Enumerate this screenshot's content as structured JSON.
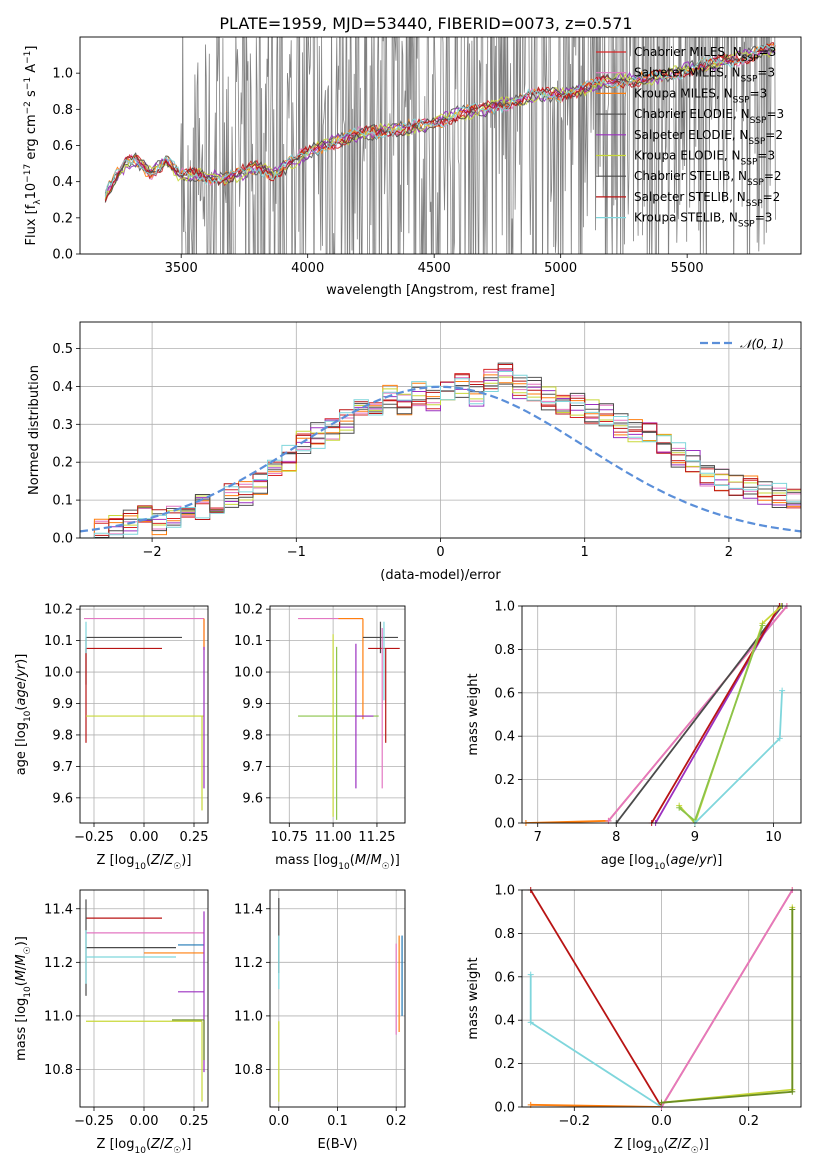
{
  "figure": {
    "title": "PLATE=1959, MJD=53440, FIBERID=0073, z=0.571"
  },
  "palette": {
    "chabrier_miles": "#1f77b4",
    "salpeter_miles": "#e377c2",
    "kroupa_miles": "#ff7f0e",
    "chabrier_elodie": "#555555",
    "salpeter_elodie": "#9467bd",
    "kroupa_elodie": "#bcbd22",
    "chabrier_stelib": "#4a4a4a",
    "salpeter_stelib": "#d62728",
    "kroupa_stelib": "#7fd6dc",
    "gauss": "#5b8fd9",
    "data_grey": "#808080"
  },
  "legend_spectrum": [
    {
      "text": "Chabrier MILES, N",
      "sub": "SSP",
      "tail": "=3",
      "color": "#d62728"
    },
    {
      "text": "Salpeter MILES, N",
      "sub": "SSP",
      "tail": "=3",
      "color": "#e377c2"
    },
    {
      "text": "Kroupa MILES, N",
      "sub": "SSP",
      "tail": "=3",
      "color": "#ff7f0e"
    },
    {
      "text": "Chabrier ELODIE, N",
      "sub": "SSP",
      "tail": "=3",
      "color": "#555555"
    },
    {
      "text": "Salpeter ELODIE, N",
      "sub": "SSP",
      "tail": "=2",
      "color": "#9b30c0"
    },
    {
      "text": "Kroupa ELODIE, N",
      "sub": "SSP",
      "tail": "=3",
      "color": "#c8d83a"
    },
    {
      "text": "Chabrier STELIB, N",
      "sub": "SSP",
      "tail": "=2",
      "color": "#4a4a4a"
    },
    {
      "text": "Salpeter STELIB, N",
      "sub": "SSP",
      "tail": "=2",
      "color": "#b81414"
    },
    {
      "text": "Kroupa STELIB, N",
      "sub": "SSP",
      "tail": "=3",
      "color": "#7fd6dc"
    }
  ],
  "legend_gauss": {
    "label": "𝒩(0, 1)"
  },
  "chart_data": [
    {
      "id": "spectrum",
      "type": "line",
      "xlabel": "wavelength [Angstrom, rest frame]",
      "ylabel": "Flux [f_λ 10^-17 erg cm^-2 s^-1 A^-1]",
      "xlim": [
        3100,
        5950
      ],
      "ylim": [
        0,
        1.2
      ],
      "xticks": [
        3500,
        4000,
        4500,
        5000,
        5500
      ],
      "yticks": [
        0.0,
        0.2,
        0.4,
        0.6,
        0.8,
        1.0
      ],
      "continuum": [
        [
          3200,
          0.33
        ],
        [
          3240,
          0.42
        ],
        [
          3280,
          0.5
        ],
        [
          3320,
          0.52
        ],
        [
          3380,
          0.45
        ],
        [
          3440,
          0.52
        ],
        [
          3500,
          0.43
        ],
        [
          3560,
          0.44
        ],
        [
          3620,
          0.42
        ],
        [
          3680,
          0.42
        ],
        [
          3740,
          0.45
        ],
        [
          3800,
          0.48
        ],
        [
          3870,
          0.44
        ],
        [
          3930,
          0.5
        ],
        [
          4000,
          0.56
        ],
        [
          4100,
          0.62
        ],
        [
          4200,
          0.66
        ],
        [
          4300,
          0.68
        ],
        [
          4400,
          0.7
        ],
        [
          4500,
          0.72
        ],
        [
          4600,
          0.78
        ],
        [
          4700,
          0.8
        ],
        [
          4800,
          0.84
        ],
        [
          4900,
          0.88
        ],
        [
          5000,
          0.88
        ],
        [
          5100,
          0.92
        ],
        [
          5200,
          0.96
        ],
        [
          5300,
          0.96
        ],
        [
          5400,
          0.98
        ],
        [
          5500,
          1.02
        ],
        [
          5600,
          1.05
        ],
        [
          5700,
          1.08
        ],
        [
          5800,
          1.12
        ],
        [
          5850,
          1.14
        ]
      ],
      "grey_region": [
        3200,
        5850
      ],
      "noisy_from": 3500
    },
    {
      "id": "residuals",
      "type": "histogram",
      "xlabel": "(data-model)/error",
      "ylabel": "Normed distribution",
      "xlim": [
        -2.5,
        2.5
      ],
      "ylim": [
        0,
        0.57
      ],
      "xticks": [
        -2,
        -1,
        0,
        1,
        2
      ],
      "yticks": [
        0.0,
        0.1,
        0.2,
        0.3,
        0.4,
        0.5
      ],
      "bin_edges_start": -2.5,
      "bin_width": 0.1,
      "base_heights": [
        0.02,
        0.02,
        0.03,
        0.04,
        0.05,
        0.04,
        0.05,
        0.06,
        0.08,
        0.09,
        0.11,
        0.12,
        0.15,
        0.18,
        0.21,
        0.25,
        0.27,
        0.29,
        0.31,
        0.33,
        0.34,
        0.37,
        0.36,
        0.38,
        0.37,
        0.39,
        0.4,
        0.38,
        0.41,
        0.44,
        0.4,
        0.39,
        0.37,
        0.36,
        0.35,
        0.33,
        0.32,
        0.3,
        0.28,
        0.27,
        0.25,
        0.22,
        0.2,
        0.17,
        0.15,
        0.14,
        0.13,
        0.12,
        0.11,
        0.1
      ],
      "gauss": {
        "mu": 0,
        "sigma": 1
      }
    },
    {
      "id": "age_vs_Z",
      "type": "errorbar",
      "xlabel": "Z [log10(Z/Z☉)]",
      "ylabel": "age [log10(age/yr)]",
      "xlim": [
        -0.32,
        0.32
      ],
      "ylim": [
        9.52,
        10.21
      ],
      "xticks": [
        -0.25,
        0.0,
        0.25
      ],
      "yticks": [
        9.6,
        9.7,
        9.8,
        9.9,
        10.0,
        10.1,
        10.2
      ],
      "points": [
        {
          "x": 0.3,
          "y": 10.17,
          "xerr": [
            0.6,
            0.0
          ],
          "yerr": [
            0.1,
            0.0
          ],
          "color": "#e377c2"
        },
        {
          "x": 0.3,
          "y": 10.17,
          "xerr": [
            0.0,
            0.0
          ],
          "yerr": [
            0.1,
            0.0
          ],
          "color": "#ff7f0e"
        },
        {
          "x": -0.29,
          "y": 10.11,
          "xerr": [
            0.0,
            0.48
          ],
          "yerr": [
            0.15,
            0.0
          ],
          "color": "#4a4a4a"
        },
        {
          "x": -0.29,
          "y": 10.075,
          "xerr": [
            0.0,
            0.38
          ],
          "yerr": [
            0.3,
            0.0
          ],
          "color": "#b81414"
        },
        {
          "x": -0.29,
          "y": 9.86,
          "xerr": [
            0.0,
            0.59
          ],
          "yerr": [
            0.0,
            0.0
          ],
          "color": "#c8d83a"
        },
        {
          "x": 0.29,
          "y": 9.86,
          "xerr": [
            0.0,
            0.0
          ],
          "yerr": [
            0.3,
            0.0
          ],
          "color": "#c8d83a"
        },
        {
          "x": -0.29,
          "y": 10.11,
          "xerr": [
            0.0,
            0.0
          ],
          "yerr": [
            0.05,
            0.05
          ],
          "color": "#7fd6dc"
        },
        {
          "x": 0.3,
          "y": 10.08,
          "xerr": [
            0.0,
            0.0
          ],
          "yerr": [
            0.45,
            0.0
          ],
          "color": "#9b30c0"
        }
      ]
    },
    {
      "id": "age_vs_mass",
      "type": "errorbar",
      "xlabel": "mass [log10(M/M☉)]",
      "ylabel": "",
      "xlim": [
        10.64,
        11.41
      ],
      "ylim": [
        9.52,
        10.21
      ],
      "xticks": [
        10.75,
        11.0,
        11.25
      ],
      "xticklabels": [
        "10.75",
        "11.00",
        "11.25"
      ],
      "yticks": [
        9.6,
        9.7,
        9.8,
        9.9,
        10.0,
        10.1,
        10.2
      ],
      "points": [
        {
          "x": 11.05,
          "y": 10.17,
          "xerr": [
            0.25,
            0.12
          ],
          "yerr": [
            0.0,
            0.0
          ],
          "color": "#e377c2"
        },
        {
          "x": 11.17,
          "y": 10.17,
          "xerr": [
            0.14,
            0.0
          ],
          "yerr": [
            0.32,
            0.0
          ],
          "color": "#ff7f0e"
        },
        {
          "x": 11.27,
          "y": 10.11,
          "xerr": [
            0.1,
            0.1
          ],
          "yerr": [
            0.05,
            0.05
          ],
          "color": "#4a4a4a"
        },
        {
          "x": 11.3,
          "y": 10.075,
          "xerr": [
            0.1,
            0.08
          ],
          "yerr": [
            0.3,
            0.0
          ],
          "color": "#b81414"
        },
        {
          "x": 11.02,
          "y": 9.86,
          "xerr": [
            0.22,
            0.24
          ],
          "yerr": [
            0.33,
            0.22
          ],
          "color": "#8bc34a"
        },
        {
          "x": 11.0,
          "y": 9.86,
          "xerr": [
            0.0,
            0.0
          ],
          "yerr": [
            0.32,
            0.26
          ],
          "color": "#c8d83a"
        },
        {
          "x": 11.13,
          "y": 9.86,
          "xerr": [
            0.0,
            0.1
          ],
          "yerr": [
            0.23,
            0.23
          ],
          "color": "#9b30c0"
        },
        {
          "x": 11.28,
          "y": 9.86,
          "xerr": [
            0.0,
            0.0
          ],
          "yerr": [
            0.23,
            0.28
          ],
          "color": "#e377c2"
        },
        {
          "x": 11.29,
          "y": 10.11,
          "xerr": [
            0.0,
            0.0
          ],
          "yerr": [
            0.2,
            0.05
          ],
          "color": "#7fd6dc"
        }
      ]
    },
    {
      "id": "massweight_vs_age",
      "type": "line",
      "xlabel": "age [log10(age/yr)]",
      "ylabel": "mass weight",
      "xlim": [
        6.8,
        10.35
      ],
      "ylim": [
        0,
        1.0
      ],
      "xticks": [
        7,
        8,
        9,
        10
      ],
      "yticks": [
        0.0,
        0.2,
        0.4,
        0.6,
        0.8,
        1.0
      ],
      "series": [
        {
          "color": "#ff7f0e",
          "points": [
            [
              6.85,
              0.0
            ],
            [
              7.9,
              0.01
            ],
            [
              10.17,
              1.0
            ]
          ]
        },
        {
          "color": "#e377c2",
          "points": [
            [
              7.9,
              0.01
            ],
            [
              10.17,
              1.0
            ]
          ]
        },
        {
          "color": "#4a4a4a",
          "points": [
            [
              8.0,
              0.0
            ],
            [
              10.11,
              1.0
            ]
          ]
        },
        {
          "color": "#9b30c0",
          "points": [
            [
              8.5,
              0.0
            ],
            [
              10.08,
              1.0
            ]
          ]
        },
        {
          "color": "#b81414",
          "points": [
            [
              8.45,
              0.0
            ],
            [
              10.075,
              1.0
            ]
          ]
        },
        {
          "color": "#c8d83a",
          "points": [
            [
              8.8,
              0.08
            ],
            [
              9.0,
              0.0
            ],
            [
              9.86,
              0.92
            ],
            [
              10.1,
              1.0
            ]
          ]
        },
        {
          "color": "#8bc34a",
          "points": [
            [
              8.8,
              0.07
            ],
            [
              9.0,
              0.01
            ],
            [
              9.86,
              0.91
            ]
          ]
        },
        {
          "color": "#7fd6dc",
          "points": [
            [
              9.0,
              0.0
            ],
            [
              10.08,
              0.39
            ],
            [
              10.11,
              0.61
            ]
          ]
        }
      ]
    },
    {
      "id": "mass_vs_Z",
      "type": "errorbar",
      "xlabel": "Z [log10(Z/Z☉)]",
      "ylabel": "mass [log10(M/M☉)]",
      "xlim": [
        -0.32,
        0.32
      ],
      "ylim": [
        10.66,
        11.47
      ],
      "xticks": [
        -0.25,
        0.0,
        0.25
      ],
      "yticks": [
        10.8,
        11.0,
        11.2,
        11.4
      ],
      "points": [
        {
          "x": -0.29,
          "y": 11.365,
          "xerr": [
            0.0,
            0.38
          ],
          "yerr": [
            0.0,
            0.0
          ],
          "color": "#b81414"
        },
        {
          "x": -0.29,
          "y": 11.31,
          "xerr": [
            0.0,
            0.59
          ],
          "yerr": [
            0.0,
            0.0
          ],
          "color": "#e377c2"
        },
        {
          "x": -0.29,
          "y": 11.255,
          "xerr": [
            0.0,
            0.45
          ],
          "yerr": [
            0.18,
            0.18
          ],
          "color": "#4a4a4a"
        },
        {
          "x": 0.3,
          "y": 11.265,
          "xerr": [
            0.13,
            0.0
          ],
          "yerr": [
            0.0,
            0.0
          ],
          "color": "#1f77b4"
        },
        {
          "x": 0.3,
          "y": 11.235,
          "xerr": [
            0.3,
            0.0
          ],
          "yerr": [
            0.0,
            0.0
          ],
          "color": "#ff7f0e"
        },
        {
          "x": -0.29,
          "y": 11.22,
          "xerr": [
            0.0,
            0.45
          ],
          "yerr": [
            0.1,
            0.1
          ],
          "color": "#7fd6dc"
        },
        {
          "x": 0.3,
          "y": 11.09,
          "xerr": [
            0.13,
            0.0
          ],
          "yerr": [
            0.3,
            0.3
          ],
          "color": "#9b30c0"
        },
        {
          "x": 0.29,
          "y": 10.98,
          "xerr": [
            0.58,
            0.0
          ],
          "yerr": [
            0.3,
            0.0
          ],
          "color": "#c8d83a"
        },
        {
          "x": 0.3,
          "y": 10.985,
          "xerr": [
            0.16,
            0.0
          ],
          "yerr": [
            0.15,
            0.0
          ],
          "color": "#6b8e23"
        }
      ]
    },
    {
      "id": "mass_vs_ebv",
      "type": "errorbar",
      "xlabel": "E(B-V)",
      "ylabel": "",
      "xlim": [
        -0.015,
        0.215
      ],
      "ylim": [
        10.66,
        11.47
      ],
      "xticks": [
        0.0,
        0.1,
        0.2
      ],
      "yticks": [
        10.8,
        11.0,
        11.2,
        11.4
      ],
      "points": [
        {
          "x": 0.0,
          "y": 11.3,
          "xerr": [
            0.0,
            0.0
          ],
          "yerr": [
            0.14,
            0.14
          ],
          "color": "#4a4a4a"
        },
        {
          "x": 0.0,
          "y": 11.2,
          "xerr": [
            0.0,
            0.0
          ],
          "yerr": [
            0.1,
            0.1
          ],
          "color": "#7fd6dc"
        },
        {
          "x": 0.0,
          "y": 10.98,
          "xerr": [
            0.0,
            0.0
          ],
          "yerr": [
            0.3,
            0.0
          ],
          "color": "#c8d83a"
        },
        {
          "x": 0.2,
          "y": 11.1,
          "xerr": [
            0.0,
            0.0
          ],
          "yerr": [
            0.17,
            0.17
          ],
          "color": "#e377c2"
        },
        {
          "x": 0.205,
          "y": 11.12,
          "xerr": [
            0.0,
            0.0
          ],
          "yerr": [
            0.18,
            0.18
          ],
          "color": "#ff7f0e"
        },
        {
          "x": 0.21,
          "y": 11.15,
          "xerr": [
            0.0,
            0.0
          ],
          "yerr": [
            0.15,
            0.15
          ],
          "color": "#1f77b4"
        }
      ]
    },
    {
      "id": "massweight_vs_Z",
      "type": "line",
      "xlabel": "Z [log10(Z/Z☉)]",
      "ylabel": "mass weight",
      "xlim": [
        -0.32,
        0.32
      ],
      "ylim": [
        0,
        1.0
      ],
      "xticks": [
        -0.2,
        0.0,
        0.2
      ],
      "yticks": [
        0.0,
        0.2,
        0.4,
        0.6,
        0.8,
        1.0
      ],
      "series": [
        {
          "color": "#b81414",
          "points": [
            [
              -0.3,
              1.0
            ],
            [
              0.0,
              0.0
            ]
          ]
        },
        {
          "color": "#7fd6dc",
          "points": [
            [
              -0.3,
              0.61
            ],
            [
              -0.3,
              0.39
            ],
            [
              0.0,
              0.0
            ]
          ]
        },
        {
          "color": "#ff7f0e",
          "points": [
            [
              -0.3,
              0.01
            ],
            [
              0.0,
              0.0
            ],
            [
              0.3,
              1.0
            ]
          ]
        },
        {
          "color": "#e377c2",
          "points": [
            [
              0.0,
              0.0
            ],
            [
              0.3,
              1.0
            ]
          ]
        },
        {
          "color": "#c8d83a",
          "points": [
            [
              0.0,
              0.02
            ],
            [
              0.3,
              0.08
            ],
            [
              0.3,
              0.92
            ]
          ]
        },
        {
          "color": "#6b8e23",
          "points": [
            [
              0.0,
              0.02
            ],
            [
              0.3,
              0.07
            ],
            [
              0.3,
              0.91
            ]
          ]
        }
      ]
    }
  ],
  "axis_text": {
    "spectrum_ylabel": "Flux [f",
    "age_ylabel": "age  [log",
    "mass_ylabel": "mass [log",
    "z_xlabel": "Z [log",
    "mass_xlabel": "mass [log",
    "age_xlabel": "age  [log"
  }
}
